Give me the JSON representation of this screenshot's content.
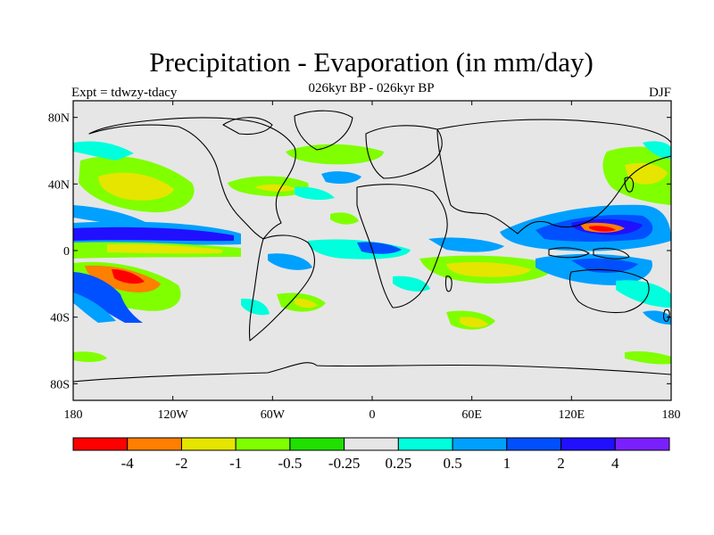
{
  "title": "Precipitation - Evaporation (in mm/day)",
  "left_label": "Expt = tdwzy-tdacy",
  "center_label": "026kyr BP - 026kyr BP",
  "right_label": "DJF",
  "map": {
    "background_color": "#e6e6e6",
    "lat_ticks": [
      {
        "value": 80,
        "label": "80N"
      },
      {
        "value": 40,
        "label": "40N"
      },
      {
        "value": 0,
        "label": "0"
      },
      {
        "value": -40,
        "label": "40S"
      },
      {
        "value": -80,
        "label": "80S"
      }
    ],
    "lon_ticks": [
      {
        "value": -180,
        "label": "180"
      },
      {
        "value": -120,
        "label": "120W"
      },
      {
        "value": -60,
        "label": "60W"
      },
      {
        "value": 0,
        "label": "0"
      },
      {
        "value": 60,
        "label": "60E"
      },
      {
        "value": 120,
        "label": "120E"
      },
      {
        "value": 180,
        "label": "180"
      }
    ],
    "lon_range": [
      -180,
      180
    ],
    "lat_range": [
      -90,
      90
    ]
  },
  "colorbar": {
    "colors": [
      "#ff0000",
      "#ff7f00",
      "#e5e500",
      "#80ff00",
      "#20e000",
      "#e6e6e6",
      "#00ffdd",
      "#00a0ff",
      "#0050ff",
      "#2010ff",
      "#7a20ff"
    ],
    "labels": [
      "-4",
      "-2",
      "-1",
      "-0.5",
      "-0.25",
      "0.25",
      "0.5",
      "1",
      "2",
      "4"
    ]
  }
}
